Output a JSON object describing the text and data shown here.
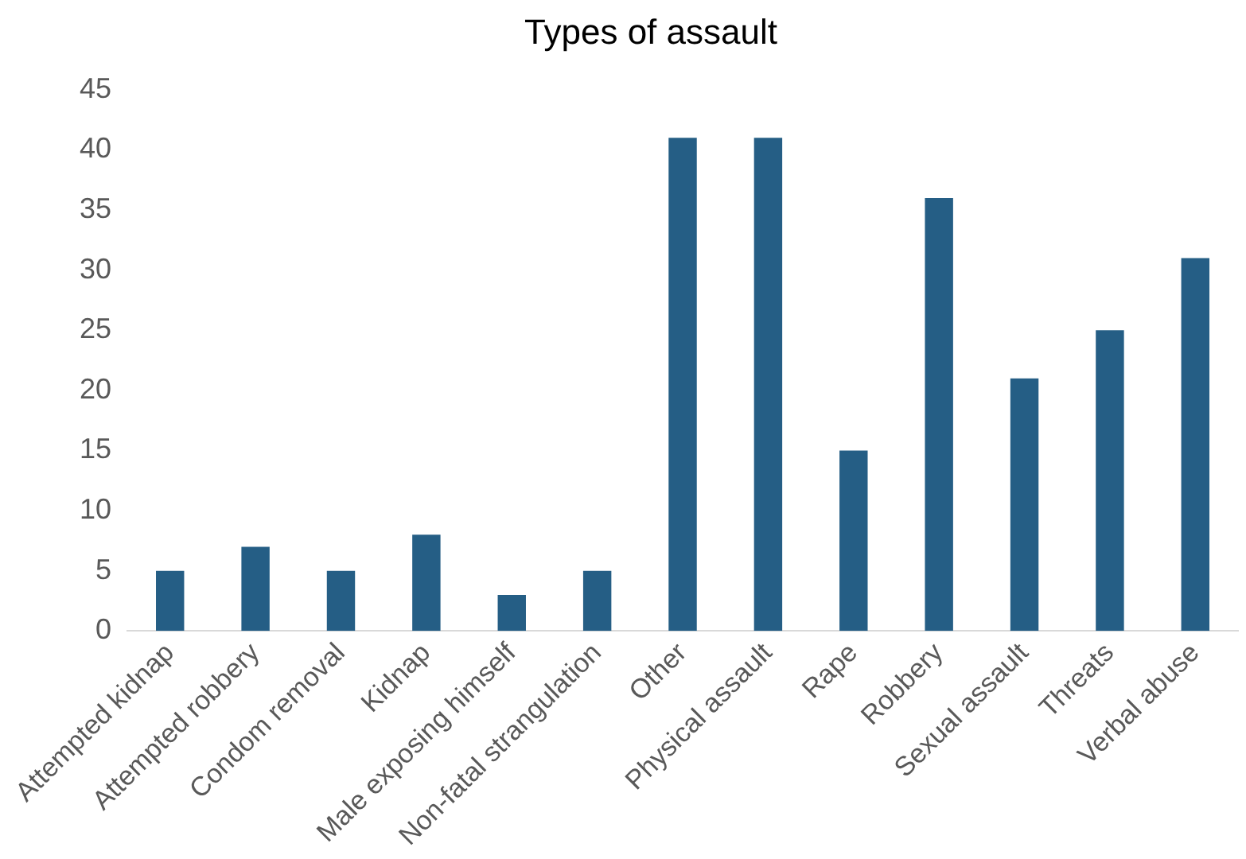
{
  "chart_data": {
    "type": "bar",
    "title": "Types of assault",
    "categories": [
      "Attempted kidnap",
      "Attempted robbery",
      "Condom removal",
      "Kidnap",
      "Male exposing himself",
      "Non-fatal strangulation",
      "Other",
      "Physical assault",
      "Rape",
      "Robbery",
      "Sexual assault",
      "Threats",
      "Verbal abuse"
    ],
    "values": [
      5,
      7,
      5,
      8,
      3,
      5,
      41,
      41,
      15,
      36,
      21,
      25,
      31
    ],
    "color": "#255e85",
    "ylim": [
      0,
      45
    ],
    "yticks": [
      0,
      5,
      10,
      15,
      20,
      25,
      30,
      35,
      40,
      45
    ],
    "grid": false,
    "legend": false
  }
}
